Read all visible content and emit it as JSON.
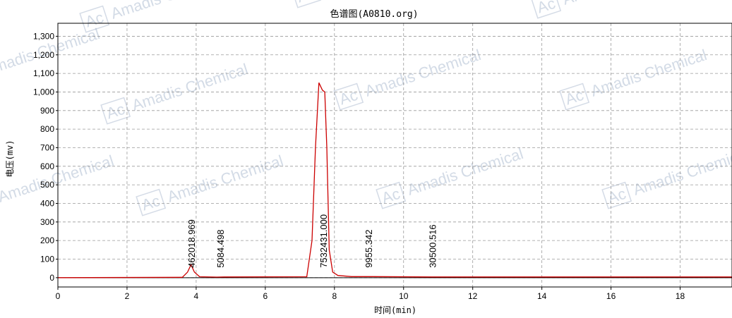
{
  "watermark": {
    "text": "Amadis Chemical",
    "logo": "Ac",
    "color": "#9fb0c8"
  },
  "chart_data": {
    "type": "line",
    "title": "色谱图(A0810.org)",
    "xlabel": "时间(min)",
    "ylabel": "电压(mv)",
    "xlim": [
      0,
      19.5
    ],
    "ylim": [
      -50,
      1370
    ],
    "xticks": [
      0,
      2,
      4,
      6,
      8,
      10,
      12,
      14,
      16,
      18
    ],
    "xtick_labels": [
      "0",
      "2",
      "4",
      "6",
      "8",
      "10",
      "12",
      "14",
      "16",
      "18"
    ],
    "yticks": [
      0,
      100,
      200,
      300,
      400,
      500,
      600,
      700,
      800,
      900,
      1000,
      1100,
      1200,
      1300
    ],
    "ytick_labels": [
      "0",
      "100",
      "200",
      "300",
      "400",
      "500",
      "600",
      "700",
      "800",
      "900",
      "1,000",
      "1,100",
      "1,200",
      "1,300"
    ],
    "grid": true,
    "line_color": "#cc0000",
    "baseline_color": "#000000",
    "series": [
      {
        "x": [
          0,
          3.6,
          3.75,
          3.85,
          3.95,
          4.1,
          4.6,
          4.8,
          7.2,
          7.35,
          7.45,
          7.55,
          7.65,
          7.72,
          7.78,
          7.85,
          7.95,
          8.1,
          8.5,
          9.0,
          9.1,
          10.8,
          11,
          19.5
        ],
        "y": [
          0,
          2,
          30,
          70,
          30,
          5,
          3,
          4,
          5,
          200,
          700,
          1050,
          1010,
          1000,
          700,
          150,
          30,
          12,
          6,
          6,
          6,
          4,
          4,
          4
        ]
      }
    ],
    "peaks": [
      {
        "rt": 3.88,
        "area": "462018.969"
      },
      {
        "rt": 4.72,
        "area": "5084.498"
      },
      {
        "rt": 7.7,
        "area": "7532431.000"
      },
      {
        "rt": 9.0,
        "area": "9955.342"
      },
      {
        "rt": 10.85,
        "area": "30500.516"
      }
    ]
  }
}
